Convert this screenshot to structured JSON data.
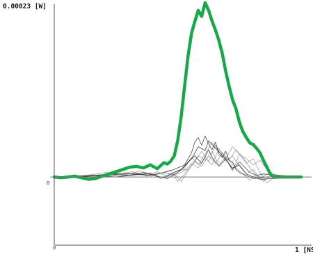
{
  "chart_data": {
    "type": "line",
    "ylabel": "0.00023 [W]",
    "xlabel": "1 [NS",
    "y_zero_label": "0",
    "x_zero_label": "0",
    "xlim": [
      0,
      1
    ],
    "ylim": [
      -9e-05,
      0.00023
    ],
    "grid": false,
    "colors": {
      "highlight": "#18a84a",
      "gray": "#9a9a9a",
      "dark": "#2a2a2a",
      "axis": "#555555",
      "zero": "#777777"
    },
    "series": [
      {
        "style": "highlight",
        "x": [
          0.0,
          0.028,
          0.056,
          0.083,
          0.111,
          0.139,
          0.167,
          0.194,
          0.222,
          0.25,
          0.278,
          0.306,
          0.333,
          0.361,
          0.389,
          0.417,
          0.431,
          0.444,
          0.458,
          0.472,
          0.486,
          0.5,
          0.514,
          0.528,
          0.542,
          0.556,
          0.569,
          0.583,
          0.597,
          0.611,
          0.625,
          0.639,
          0.653,
          0.667,
          0.681,
          0.694,
          0.708,
          0.722,
          0.736,
          0.75,
          0.764,
          0.778,
          0.792,
          0.806,
          0.819,
          0.833,
          0.847,
          0.861,
          0.875,
          0.889,
          0.903,
          0.917,
          0.931,
          0.944,
          0.958,
          0.972,
          1.0
        ],
        "values": [
          0.0,
          -1e-06,
          0.0,
          1e-06,
          -1e-06,
          -3e-06,
          -2e-06,
          1e-06,
          4e-06,
          7e-06,
          1e-05,
          1.3e-05,
          1.4e-05,
          1.2e-05,
          1.6e-05,
          1.1e-05,
          1.5e-05,
          1.9e-05,
          1.7e-05,
          2.1e-05,
          2.8e-05,
          4.8e-05,
          8e-05,
          0.00012,
          0.00016,
          0.00019,
          0.000205,
          0.00022,
          0.000212,
          0.00023,
          0.00022,
          0.000206,
          0.000194,
          0.00018,
          0.000162,
          0.00014,
          0.00012,
          0.000102,
          9e-05,
          7.2e-05,
          6e-05,
          5.2e-05,
          4.5e-05,
          4.3e-05,
          3.8e-05,
          3.2e-05,
          2.2e-05,
          1.3e-05,
          4e-06,
          0.0,
          0.0,
          0.0,
          0.0,
          0.0,
          0.0,
          0.0,
          0.0
        ]
      },
      {
        "style": "dark",
        "x": [
          0.0,
          0.111,
          0.194,
          0.278,
          0.333,
          0.389,
          0.444,
          0.486,
          0.528,
          0.556,
          0.569,
          0.583,
          0.597,
          0.611,
          0.625,
          0.639,
          0.653,
          0.667,
          0.681,
          0.694,
          0.708,
          0.722,
          0.736,
          0.75,
          0.778,
          0.806,
          0.833,
          0.861,
          0.889,
          1.0
        ],
        "values": [
          0.0,
          0.0,
          3e-06,
          5e-06,
          4e-06,
          2e-06,
          6e-06,
          1e-05,
          1.6e-05,
          3.2e-05,
          4.6e-05,
          5.2e-05,
          4.2e-05,
          5.4e-05,
          4.4e-05,
          3.6e-05,
          4.6e-05,
          3e-05,
          2.6e-05,
          3.4e-05,
          2.2e-05,
          2e-05,
          1e-05,
          6e-06,
          2e-06,
          -2e-06,
          -1e-06,
          0.0,
          0.0,
          0.0
        ]
      },
      {
        "style": "dark",
        "x": [
          0.0,
          0.139,
          0.222,
          0.306,
          0.361,
          0.417,
          0.458,
          0.5,
          0.528,
          0.556,
          0.583,
          0.611,
          0.625,
          0.653,
          0.681,
          0.708,
          0.722,
          0.75,
          0.778,
          0.806,
          0.833,
          1.0
        ],
        "values": [
          0.0,
          1e-06,
          4e-06,
          2e-06,
          6e-06,
          1e-06,
          -2e-06,
          6e-06,
          1.4e-05,
          2.4e-05,
          4e-05,
          3.5e-05,
          4.8e-05,
          3.8e-05,
          2.8e-05,
          1.8e-05,
          1.2e-05,
          1.6e-05,
          4e-06,
          0.0,
          -3e-06,
          0.0
        ]
      },
      {
        "style": "dark",
        "x": [
          0.0,
          0.167,
          0.25,
          0.333,
          0.389,
          0.431,
          0.472,
          0.514,
          0.542,
          0.569,
          0.597,
          0.625,
          0.639,
          0.667,
          0.694,
          0.722,
          0.75,
          0.792,
          0.819,
          0.847,
          1.0
        ],
        "values": [
          0.0,
          2e-06,
          0.0,
          3e-06,
          5e-06,
          -2e-06,
          4e-06,
          1e-05,
          2e-05,
          2.8e-05,
          1.8e-05,
          3.6e-05,
          2.6e-05,
          1.4e-05,
          2.4e-05,
          1e-05,
          2e-05,
          6e-06,
          2e-06,
          4e-06,
          0.0
        ]
      },
      {
        "style": "gray",
        "x": [
          0.0,
          0.125,
          0.208,
          0.292,
          0.347,
          0.403,
          0.444,
          0.486,
          0.514,
          0.542,
          0.569,
          0.597,
          0.625,
          0.653,
          0.681,
          0.708,
          0.736,
          0.764,
          0.792,
          0.819,
          0.847,
          0.875,
          1.0
        ],
        "values": [
          0.0,
          2e-06,
          6e-06,
          3e-06,
          8e-06,
          3e-06,
          -1e-06,
          4e-06,
          -6e-06,
          8e-06,
          2e-05,
          3.4e-05,
          2e-05,
          4.2e-05,
          3e-05,
          2.2e-05,
          3.6e-05,
          2.6e-05,
          1.2e-05,
          2e-06,
          -4e-06,
          0.0,
          0.0
        ]
      },
      {
        "style": "gray",
        "x": [
          0.0,
          0.153,
          0.236,
          0.319,
          0.375,
          0.431,
          0.472,
          0.5,
          0.528,
          0.556,
          0.583,
          0.611,
          0.639,
          0.667,
          0.694,
          0.722,
          0.75,
          0.778,
          0.806,
          0.833,
          0.861,
          0.889,
          1.0
        ],
        "values": [
          0.0,
          -2e-06,
          3e-06,
          7e-06,
          1e-06,
          5e-06,
          9e-06,
          -6e-06,
          4e-06,
          1.6e-05,
          2.8e-05,
          2.2e-05,
          3.4e-05,
          1.6e-05,
          2.6e-05,
          8e-06,
          3e-05,
          1.8e-05,
          2.4e-05,
          6e-06,
          -8e-06,
          0.0,
          0.0
        ]
      },
      {
        "style": "gray",
        "x": [
          0.0,
          0.181,
          0.264,
          0.347,
          0.403,
          0.444,
          0.486,
          0.528,
          0.556,
          0.583,
          0.611,
          0.639,
          0.667,
          0.694,
          0.722,
          0.75,
          0.778,
          0.806,
          0.833,
          0.861,
          0.903,
          1.0
        ],
        "values": [
          0.0,
          3e-06,
          1e-06,
          4e-06,
          2e-06,
          6e-06,
          3e-06,
          1.2e-05,
          2.6e-05,
          1.6e-05,
          3e-05,
          4.6e-05,
          3.4e-05,
          2e-05,
          2.8e-05,
          1.4e-05,
          4e-06,
          1e-05,
          -2e-06,
          4e-06,
          0.0,
          0.0
        ]
      },
      {
        "style": "gray",
        "x": [
          0.0,
          0.208,
          0.292,
          0.375,
          0.417,
          0.458,
          0.5,
          0.542,
          0.569,
          0.597,
          0.625,
          0.653,
          0.681,
          0.708,
          0.736,
          0.764,
          0.792,
          0.819,
          0.847,
          0.875,
          0.917,
          1.0
        ],
        "values": [
          0.0,
          1e-06,
          4e-06,
          2e-06,
          7e-06,
          1e-06,
          9e-06,
          1e-05,
          2.2e-05,
          1.4e-05,
          2.8e-05,
          1.8e-05,
          3.2e-05,
          2.2e-05,
          1.2e-05,
          4e-06,
          -4e-06,
          4e-06,
          -6e-06,
          2e-06,
          0.0,
          0.0
        ]
      },
      {
        "style": "gray",
        "x": [
          0.0,
          0.236,
          0.319,
          0.389,
          0.444,
          0.486,
          0.528,
          0.556,
          0.583,
          0.611,
          0.639,
          0.667,
          0.694,
          0.722,
          0.75,
          0.778,
          0.806,
          0.833,
          0.861,
          0.889,
          0.931,
          1.0
        ],
        "values": [
          0.0,
          2e-06,
          5e-06,
          3e-06,
          6e-06,
          2e-06,
          8e-06,
          1.8e-05,
          1.2e-05,
          2.6e-05,
          1.6e-05,
          3.8e-05,
          2.4e-05,
          4e-05,
          3e-05,
          2.4e-05,
          1.6e-05,
          2.2e-05,
          1e-05,
          4e-06,
          0.0,
          0.0
        ]
      }
    ]
  }
}
